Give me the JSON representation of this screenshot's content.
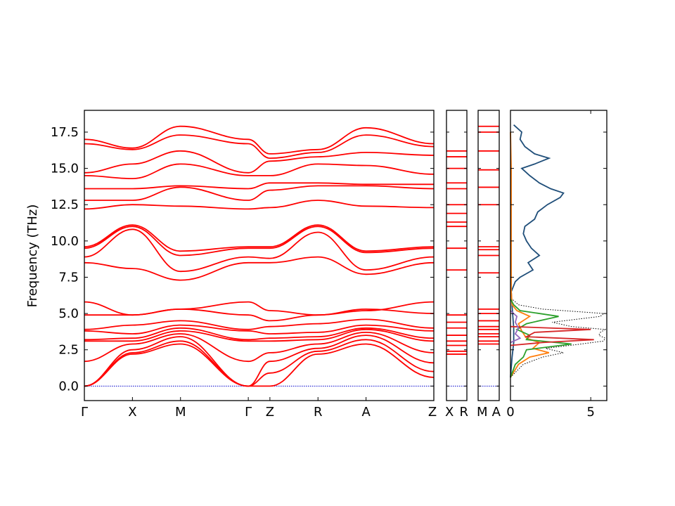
{
  "chart_data": {
    "type": "line",
    "ylabel": "Frequency (THz)",
    "ylim": [
      -1.0,
      19.0
    ],
    "yticks": [
      0.0,
      2.5,
      5.0,
      7.5,
      10.0,
      12.5,
      15.0,
      17.5
    ],
    "ytick_labels": [
      "0.0",
      "2.5",
      "5.0",
      "7.5",
      "10.0",
      "12.5",
      "15.0",
      "17.5"
    ],
    "band_color": "#ff0000",
    "zero_line_color": "#0000cc",
    "x_labels": [
      "Γ",
      "X",
      "M",
      "Γ",
      "Z",
      "R",
      "A",
      "Z",
      "X",
      "R",
      "M",
      "A"
    ],
    "main_path": {
      "segments": [
        {
          "from": "Γ",
          "to": "X",
          "length": 1.0
        },
        {
          "from": "X",
          "to": "M",
          "length": 1.0
        },
        {
          "from": "M",
          "to": "Γ",
          "length": 1.41
        },
        {
          "from": "Γ",
          "to": "Z",
          "length": 0.45
        },
        {
          "from": "Z",
          "to": "R",
          "length": 1.0
        },
        {
          "from": "R",
          "to": "A",
          "length": 1.0
        },
        {
          "from": "A",
          "to": "Z",
          "length": 1.41
        }
      ],
      "bands": [
        {
          "name": "acoustic-1",
          "values": [
            0.0,
            2.2,
            2.9,
            0.0,
            0.0,
            2.2,
            2.9,
            0.6
          ]
        },
        {
          "name": "acoustic-2",
          "values": [
            0.0,
            2.3,
            3.1,
            0.0,
            0.9,
            2.4,
            3.2,
            1.0
          ]
        },
        {
          "name": "acoustic-3",
          "values": [
            0.0,
            2.5,
            3.4,
            0.0,
            1.7,
            2.6,
            3.5,
            1.6
          ]
        },
        {
          "name": "band-4",
          "values": [
            1.7,
            2.9,
            3.6,
            1.7,
            2.3,
            2.9,
            3.7,
            2.3
          ]
        },
        {
          "name": "band-5",
          "values": [
            3.1,
            3.1,
            3.8,
            3.1,
            3.1,
            3.2,
            3.9,
            3.1
          ]
        },
        {
          "name": "band-6",
          "values": [
            3.2,
            3.3,
            4.0,
            3.2,
            3.3,
            3.4,
            4.0,
            3.3
          ]
        },
        {
          "name": "band-7",
          "values": [
            3.8,
            3.6,
            4.2,
            3.8,
            3.6,
            3.7,
            4.2,
            3.8
          ]
        },
        {
          "name": "band-8",
          "values": [
            3.9,
            4.2,
            4.5,
            3.9,
            4.1,
            4.3,
            4.6,
            4.0
          ]
        },
        {
          "name": "band-9",
          "values": [
            4.9,
            4.9,
            5.3,
            4.9,
            4.5,
            4.9,
            5.3,
            5.0
          ]
        },
        {
          "name": "band-10",
          "values": [
            5.8,
            4.9,
            5.3,
            5.8,
            5.2,
            4.9,
            5.2,
            5.8
          ]
        },
        {
          "name": "band-11",
          "values": [
            8.5,
            8.1,
            7.3,
            8.5,
            8.5,
            8.9,
            7.7,
            8.5
          ]
        },
        {
          "name": "band-12",
          "values": [
            8.9,
            10.8,
            7.9,
            8.9,
            8.8,
            10.6,
            8.0,
            8.9
          ]
        },
        {
          "name": "band-13",
          "values": [
            9.5,
            11.0,
            9.0,
            9.5,
            9.5,
            11.0,
            9.2,
            9.5
          ]
        },
        {
          "name": "band-14",
          "values": [
            9.6,
            11.1,
            9.3,
            9.6,
            9.6,
            11.1,
            9.3,
            9.6
          ]
        },
        {
          "name": "band-15",
          "values": [
            12.2,
            12.5,
            12.4,
            12.2,
            12.3,
            12.8,
            12.4,
            12.3
          ]
        },
        {
          "name": "band-16",
          "values": [
            12.8,
            12.8,
            13.7,
            12.8,
            13.5,
            13.8,
            13.8,
            13.6
          ]
        },
        {
          "name": "band-17",
          "values": [
            13.6,
            13.6,
            13.8,
            13.6,
            14.0,
            14.0,
            13.9,
            13.9
          ]
        },
        {
          "name": "band-18",
          "values": [
            14.5,
            14.3,
            15.3,
            14.5,
            14.5,
            15.3,
            15.2,
            14.6
          ]
        },
        {
          "name": "band-19",
          "values": [
            14.7,
            15.3,
            16.2,
            14.7,
            15.5,
            15.8,
            16.1,
            15.9
          ]
        },
        {
          "name": "band-20",
          "values": [
            16.7,
            16.3,
            17.3,
            16.7,
            15.7,
            16.1,
            17.3,
            16.5
          ]
        },
        {
          "name": "band-21",
          "values": [
            17.0,
            16.4,
            17.9,
            17.0,
            16.0,
            16.3,
            17.8,
            16.7
          ]
        }
      ]
    },
    "side_panels": [
      {
        "labels": [
          "X",
          "R"
        ],
        "levels": [
          2.2,
          2.4,
          2.8,
          3.1,
          3.5,
          4.0,
          4.4,
          4.9,
          8.0,
          9.5,
          11.0,
          11.3,
          11.9,
          12.5,
          13.6,
          14.0,
          15.0,
          15.8,
          16.2
        ]
      },
      {
        "labels": [
          "M",
          "A"
        ],
        "levels": [
          2.9,
          3.1,
          3.4,
          3.6,
          3.9,
          4.1,
          4.5,
          5.0,
          5.3,
          7.8,
          9.0,
          9.4,
          9.6,
          12.5,
          13.7,
          14.9,
          16.2,
          17.5,
          17.9
        ]
      }
    ],
    "dos": {
      "xlim": [
        0,
        6
      ],
      "xticks": [
        0,
        5
      ],
      "xtick_labels": [
        "0",
        "5"
      ],
      "series": [
        {
          "color": "#1f4e79",
          "style": "solid",
          "freq": [
            0.6,
            2.0,
            3.0,
            4.0,
            5.5,
            6.5,
            7.2,
            7.5,
            8.0,
            8.5,
            9.0,
            9.5,
            10.0,
            10.5,
            11.0,
            11.5,
            12.0,
            12.5,
            13.0,
            13.3,
            13.6,
            14.0,
            14.5,
            15.0,
            15.3,
            15.7,
            16.0,
            16.5,
            17.0,
            17.5,
            18.0
          ],
          "dos": [
            0.0,
            0.1,
            0.2,
            0.2,
            0.1,
            0.05,
            0.3,
            0.6,
            1.4,
            1.1,
            1.8,
            1.3,
            1.0,
            0.8,
            0.9,
            1.5,
            1.7,
            2.3,
            3.1,
            3.3,
            2.5,
            1.8,
            1.2,
            0.7,
            1.5,
            2.4,
            1.5,
            0.9,
            0.6,
            0.7,
            0.2
          ]
        },
        {
          "color": "#ff7f0e",
          "style": "solid",
          "freq": [
            0.6,
            1.5,
            2.0,
            2.3,
            2.6,
            3.0,
            3.3,
            3.8,
            4.3,
            4.8,
            5.2,
            5.6,
            6.5,
            8.0,
            10.0,
            12.5,
            15.0,
            17.5
          ],
          "dos": [
            0.0,
            0.5,
            1.2,
            2.4,
            1.4,
            1.8,
            1.0,
            0.7,
            0.5,
            1.2,
            0.4,
            0.1,
            0.05,
            0.05,
            0.05,
            0.05,
            0.05,
            0.0
          ]
        },
        {
          "color": "#2ca02c",
          "style": "solid",
          "freq": [
            0.6,
            1.5,
            2.0,
            2.5,
            2.9,
            3.2,
            3.5,
            3.9,
            4.3,
            4.8,
            5.2,
            5.6,
            6.0
          ],
          "dos": [
            0.0,
            0.3,
            0.8,
            1.0,
            3.8,
            1.0,
            1.2,
            0.4,
            1.0,
            3.0,
            0.6,
            0.2,
            0.0
          ]
        },
        {
          "color": "#d62728",
          "style": "solid",
          "freq": [
            2.8,
            3.0,
            3.2,
            3.4,
            3.7,
            3.9,
            4.1
          ],
          "dos": [
            0.0,
            2.0,
            5.2,
            1.0,
            1.5,
            5.0,
            0.0
          ]
        },
        {
          "color": "#9467bd",
          "style": "solid",
          "freq": [
            3.0,
            3.3,
            3.6,
            4.0,
            4.4,
            4.8,
            5.2
          ],
          "dos": [
            0.0,
            0.6,
            0.3,
            0.5,
            0.3,
            0.4,
            0.0
          ]
        },
        {
          "color": "#000000",
          "style": "dotted",
          "freq": [
            0.6,
            1.5,
            2.0,
            2.3,
            2.6,
            2.9,
            3.1,
            3.3,
            3.5,
            3.7,
            3.9,
            4.1,
            4.4,
            4.8,
            5.0,
            5.3,
            5.6,
            6.0
          ],
          "dos": [
            0.0,
            0.8,
            2.0,
            3.3,
            2.2,
            4.4,
            5.8,
            5.9,
            5.5,
            5.6,
            5.9,
            3.8,
            2.6,
            5.6,
            5.8,
            2.0,
            0.5,
            0.1
          ]
        }
      ]
    }
  }
}
